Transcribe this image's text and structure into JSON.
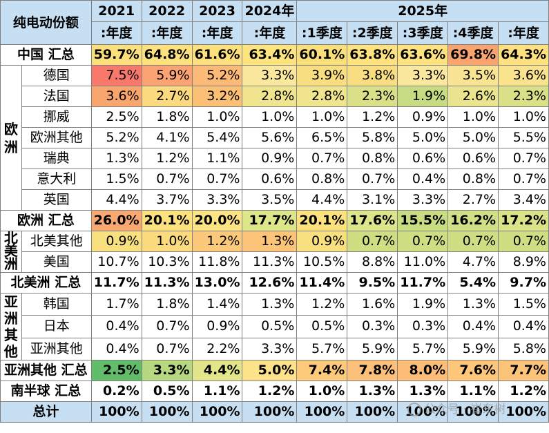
{
  "header": {
    "title": "纯电动份额",
    "years": [
      "2021",
      "2022",
      "2023",
      "2024年",
      "2025年"
    ],
    "subcols": [
      ":年度",
      ":年度",
      ":年度",
      ":年度",
      ":1季度",
      ":2季度",
      ":3季度",
      ":4季度",
      ":年度"
    ]
  },
  "rows": [
    {
      "label": "中国 汇总",
      "values": [
        "59.7%",
        "64.8%",
        "61.6%",
        "63.4%",
        "60.1%",
        "63.8%",
        "63.6%",
        "69.8%",
        "64.3%"
      ],
      "bg": [
        "#f9e07c",
        "#fce27f",
        "#fbe07d",
        "#fde47f",
        "#f9df7c",
        "#fde27f",
        "#fde27f",
        "#f9a46f",
        "#fde180"
      ]
    },
    {
      "label": "德国",
      "values": [
        "7.5%",
        "5.9%",
        "5.2%",
        "3.3%",
        "3.9%",
        "3.8%",
        "3.3%",
        "3.5%",
        "3.6%"
      ],
      "bg": [
        "#f8786b",
        "#fba372",
        "#fcba78",
        "#f9e89d",
        "#f8de80",
        "#f8de81",
        "#f9e89d",
        "#f9e493",
        "#f9e38e"
      ]
    },
    {
      "label": "法国",
      "values": [
        "3.6%",
        "2.7%",
        "3.2%",
        "2.8%",
        "2.8%",
        "2.3%",
        "1.9%",
        "2.6%",
        "2.3%"
      ],
      "bg": [
        "#f9a66e",
        "#fbd97f",
        "#fcbf76",
        "#f0e58e",
        "#f0e58e",
        "#d9e087",
        "#c6db82",
        "#e9e48d",
        "#d9e087"
      ]
    },
    {
      "label": "挪威",
      "values": [
        "2.5%",
        "1.8%",
        "1.0%",
        "1.0%",
        "1.0%",
        "1.2%",
        "0.9%",
        "1.0%",
        "1.0%"
      ],
      "bg": [
        "",
        "",
        "",
        "",
        "",
        "",
        "",
        "",
        ""
      ]
    },
    {
      "label": "欧洲其他",
      "values": [
        "5.2%",
        "4.1%",
        "5.4%",
        "5.6%",
        "6.5%",
        "5.8%",
        "5.0%",
        "5.0%",
        "5.5%"
      ],
      "bg": [
        "",
        "",
        "",
        "",
        "",
        "",
        "",
        "",
        ""
      ]
    },
    {
      "label": "瑞典",
      "values": [
        "1.3%",
        "1.2%",
        "1.1%",
        "0.9%",
        "0.7%",
        "0.8%",
        "0.6%",
        "0.6%",
        "0.7%"
      ],
      "bg": [
        "",
        "",
        "",
        "",
        "",
        "",
        "",
        "",
        ""
      ]
    },
    {
      "label": "意大利",
      "values": [
        "1.5%",
        "0.7%",
        "0.7%",
        "0.6%",
        "0.8%",
        "0.7%",
        "0.4%",
        "0.8%",
        "0.7%"
      ],
      "bg": [
        "",
        "",
        "",
        "",
        "",
        "",
        "",
        "",
        ""
      ]
    },
    {
      "label": "英国",
      "values": [
        "4.4%",
        "3.7%",
        "3.3%",
        "3.5%",
        "4.4%",
        "3.1%",
        "3.3%",
        "2.7%",
        "3.4%"
      ],
      "bg": [
        "",
        "",
        "",
        "",
        "",
        "",
        "",
        "",
        ""
      ]
    },
    {
      "label": "欧洲 汇总",
      "values": [
        "26.0%",
        "20.1%",
        "20.0%",
        "17.7%",
        "20.1%",
        "17.6%",
        "15.5%",
        "16.2%",
        "17.2%"
      ],
      "bg": [
        "#f9a872",
        "#fbe27f",
        "#fce383",
        "#dee68a",
        "#fbe27f",
        "#dde58a",
        "#c8dd82",
        "#d1e086",
        "#dae387"
      ]
    },
    {
      "label": "北美其他",
      "values": [
        "0.9%",
        "1.0%",
        "1.2%",
        "1.3%",
        "0.9%",
        "0.7%",
        "0.7%",
        "0.7%",
        "0.7%"
      ],
      "bg": [
        "#f9e07f",
        "#fcdb7e",
        "#fbc979",
        "#fcc479",
        "#f9e07f",
        "#cfdd83",
        "#cfdd83",
        "#cfdd83",
        "#cfdd83"
      ]
    },
    {
      "label": "美国",
      "values": [
        "10.7%",
        "10.3%",
        "11.8%",
        "11.3%",
        "10.5%",
        "8.8%",
        "11.0%",
        "4.7%",
        "8.9%"
      ],
      "bg": [
        "",
        "",
        "",
        "",
        "",
        "",
        "",
        "",
        ""
      ]
    },
    {
      "label": "北美洲 汇总",
      "values": [
        "11.7%",
        "11.3%",
        "13.0%",
        "12.6%",
        "11.4%",
        "9.5%",
        "11.7%",
        "5.4%",
        "9.7%"
      ],
      "bg": [
        "",
        "",
        "",
        "",
        "",
        "",
        "",
        "",
        ""
      ]
    },
    {
      "label": "韩国",
      "values": [
        "1.7%",
        "1.8%",
        "1.4%",
        "1.3%",
        "1.2%",
        "1.6%",
        "1.9%",
        "1.3%",
        "1.5%"
      ],
      "bg": [
        "",
        "",
        "",
        "",
        "",
        "",
        "",
        "",
        ""
      ]
    },
    {
      "label": "日本",
      "values": [
        "0.4%",
        "0.7%",
        "0.9%",
        "0.5%",
        "0.5%",
        "0.3%",
        "0.3%",
        "0.4%",
        "0.4%"
      ],
      "bg": [
        "",
        "",
        "",
        "",
        "",
        "",
        "",
        "",
        ""
      ]
    },
    {
      "label": "亚洲其他",
      "values": [
        "0.4%",
        "0.7%",
        "2.2%",
        "3.3%",
        "5.7%",
        "5.9%",
        "5.7%",
        "5.9%",
        "5.8%"
      ],
      "bg": [
        "",
        "",
        "",
        "",
        "",
        "",
        "",
        "",
        ""
      ]
    },
    {
      "label": "亚洲其他 汇总",
      "values": [
        "2.5%",
        "3.3%",
        "4.4%",
        "5.0%",
        "7.4%",
        "7.8%",
        "8.0%",
        "7.6%",
        "7.7%"
      ],
      "bg": [
        "#62bd6b",
        "#b7d880",
        "#e3e58a",
        "#fce38a",
        "#fdc97b",
        "#fcc07a",
        "#fcbd78",
        "#fdc67b",
        "#fcc37a"
      ]
    },
    {
      "label": "南半球 汇总",
      "values": [
        "0.2%",
        "0.5%",
        "1.1%",
        "1.2%",
        "1.0%",
        "1.3%",
        "1.3%",
        "1.1%",
        "1.2%"
      ],
      "bg": [
        "",
        "",
        "",
        "",
        "",
        "",
        "",
        "",
        ""
      ]
    },
    {
      "label": "总计",
      "values": [
        "100%",
        "100%",
        "100%",
        "100%",
        "100%",
        "100%",
        "100%",
        "100%",
        "100%"
      ],
      "bg": [
        "",
        "",
        "",
        "",
        "",
        "",
        "",
        "",
        ""
      ]
    }
  ],
  "regions": {
    "europe": [
      "欧",
      "洲"
    ],
    "north_america": [
      "北",
      "美",
      "洲"
    ],
    "asia_other": [
      "亚",
      "洲",
      "其",
      "他"
    ]
  },
  "watermark": {
    "text": "公众号 · 崔东树",
    "icon": "wechat-icon"
  },
  "colors": {
    "header_bg": "#c6dff3",
    "border": "#7f7f7f"
  }
}
